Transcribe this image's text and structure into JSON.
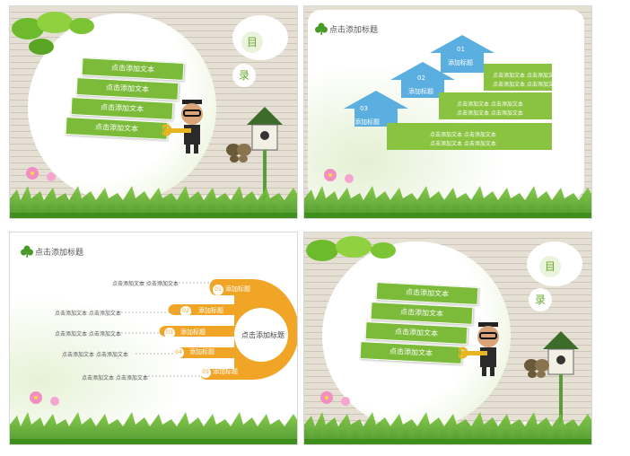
{
  "slide1": {
    "menu": [
      "点击添加文本",
      "点击添加文本",
      "点击添加文本",
      "点击添加文本"
    ],
    "mu": "目",
    "lu": "录"
  },
  "slide2": {
    "title": "点击添加标题",
    "steps": [
      {
        "num": "01",
        "label": "添加标题",
        "lines": [
          "点击添加文本 点击添加文本",
          "点击添加文本 点击添加文本"
        ]
      },
      {
        "num": "02",
        "label": "添加标题",
        "lines": [
          "点击添加文本 点击添加文本",
          "点击添加文本 点击添加文本"
        ]
      },
      {
        "num": "03",
        "label": "添加标题",
        "lines": [
          "点击添加文本 点击添加文本",
          "点击添加文本 点击添加文本"
        ]
      }
    ]
  },
  "slide3": {
    "title": "点击添加标题",
    "center": "点击添加标题",
    "fingers": [
      {
        "num": "01",
        "label": "添加标题",
        "text": "点击添加文本 点击添加文本"
      },
      {
        "num": "02",
        "label": "添加标题",
        "text": "点击添加文本 点击添加文本"
      },
      {
        "num": "03",
        "label": "添加标题",
        "text": "点击添加文本 点击添加文本"
      },
      {
        "num": "04",
        "label": "添加标题",
        "text": "点击添加文本 点击添加文本"
      },
      {
        "num": "05",
        "label": "添加标题",
        "text": "点击添加文本 点击添加文本"
      }
    ]
  },
  "slide4": {
    "menu": [
      "点击添加文本",
      "点击添加文本",
      "点击添加文本",
      "点击添加文本"
    ],
    "mu": "目",
    "lu": "录"
  }
}
